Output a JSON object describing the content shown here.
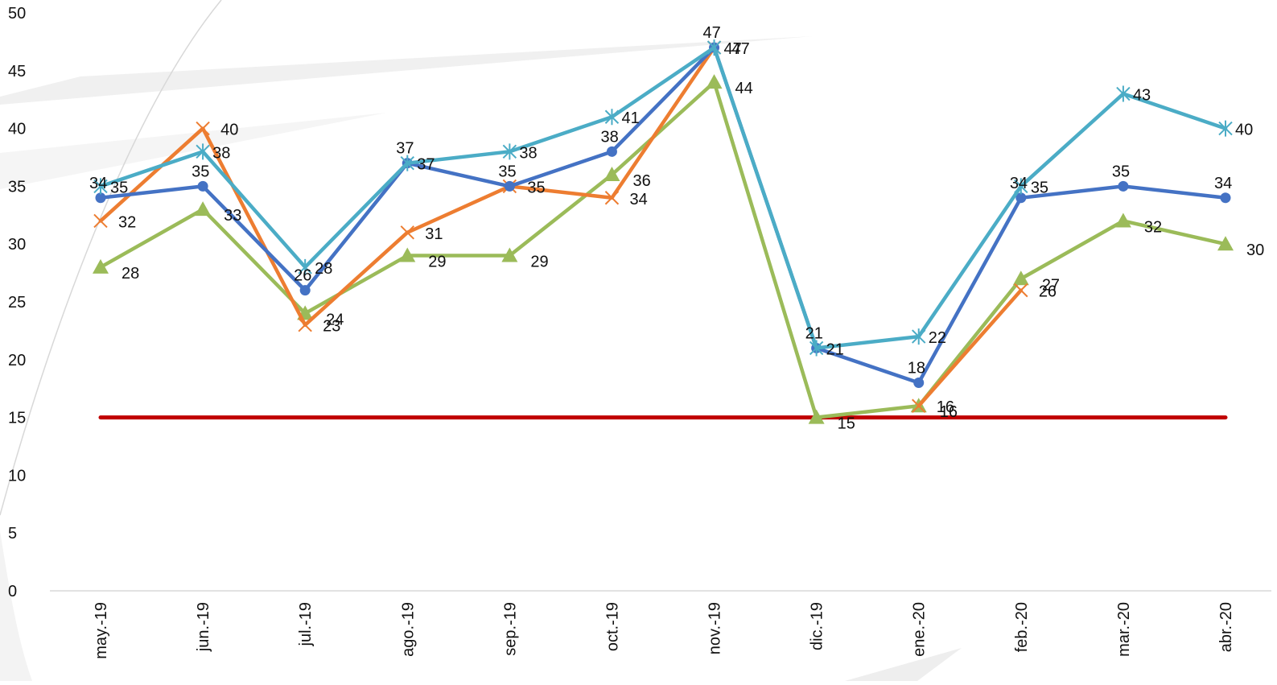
{
  "chart_data": {
    "type": "line",
    "title": "",
    "xlabel": "",
    "ylabel": "",
    "ylim": [
      0,
      50
    ],
    "yticks": [
      "0",
      "5",
      "10",
      "15",
      "20",
      "25",
      "30",
      "35",
      "40",
      "45",
      "50"
    ],
    "grid": false,
    "legend": "none",
    "categories": [
      "may.-19",
      "jun.-19",
      "jul.-19",
      "ago.-19",
      "sep.-19",
      "oct.-19",
      "nov.-19",
      "dic.-19",
      "ene.-20",
      "feb.-20",
      "mar.-20",
      "abr.-20"
    ],
    "series": [
      {
        "color": "#4472C4",
        "marker": "circle",
        "values": [
          34,
          35,
          26,
          37,
          35,
          38,
          47,
          21,
          18,
          34,
          35,
          34
        ],
        "labels": [
          "34",
          "35",
          "26",
          "37",
          "35",
          "38",
          "47",
          "21",
          "18",
          "34",
          "35",
          "34"
        ]
      },
      {
        "color": "#ED7D31",
        "marker": "x",
        "values": [
          32,
          40,
          23,
          31,
          35,
          34,
          47,
          null,
          16,
          26,
          null,
          null
        ],
        "labels": [
          "32",
          "40",
          "23",
          "31",
          "35",
          "34",
          "47",
          "",
          "16",
          "26",
          "",
          ""
        ]
      },
      {
        "color": "#9BBB59",
        "marker": "triangle",
        "values": [
          28,
          33,
          24,
          29,
          29,
          36,
          44,
          15,
          16,
          27,
          32,
          30
        ],
        "labels": [
          "28",
          "33",
          "24",
          "29",
          "29",
          "36",
          "44",
          "15",
          "16",
          "27",
          "32",
          "30"
        ]
      },
      {
        "color": "#4BACC6",
        "marker": "star",
        "values": [
          35,
          38,
          28,
          37,
          38,
          41,
          47,
          21,
          22,
          35,
          43,
          40
        ],
        "labels": [
          "35",
          "38",
          "28",
          "37",
          "38",
          "41",
          "47",
          "21",
          "22",
          "35",
          "43",
          "40"
        ]
      }
    ],
    "reference_line": {
      "value": 15,
      "color": "#C00000"
    }
  }
}
